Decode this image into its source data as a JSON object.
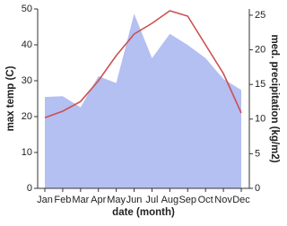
{
  "chart_data": {
    "type": "line-area",
    "x_label": "date (month)",
    "y_label": "max temp (C)",
    "y2_label": "med. precipitation (kg/m2)",
    "categories": [
      "Jan",
      "Feb",
      "Mar",
      "Apr",
      "May",
      "Jun",
      "Jul",
      "Aug",
      "Sep",
      "Oct",
      "Nov",
      "Dec"
    ],
    "series": [
      {
        "name": "max temp",
        "color": "#cc5050",
        "values": [
          19.7,
          21.5,
          24.2,
          30,
          37,
          43,
          46,
          49.5,
          48,
          40,
          32,
          21
        ]
      },
      {
        "name": "med. precipitation",
        "color": "#b4bff2",
        "axis": "y2",
        "values": [
          13.2,
          13.3,
          11.7,
          16.2,
          15.2,
          25.2,
          18.8,
          22.3,
          20.7,
          18.8,
          15.8,
          14.2
        ]
      }
    ],
    "ylim": [
      0,
      50
    ],
    "yticks": [
      0,
      10,
      20,
      30,
      40,
      50
    ],
    "y2lim": [
      0,
      25.9
    ],
    "y2ticks": [
      0,
      5,
      10,
      15,
      20,
      25
    ]
  }
}
